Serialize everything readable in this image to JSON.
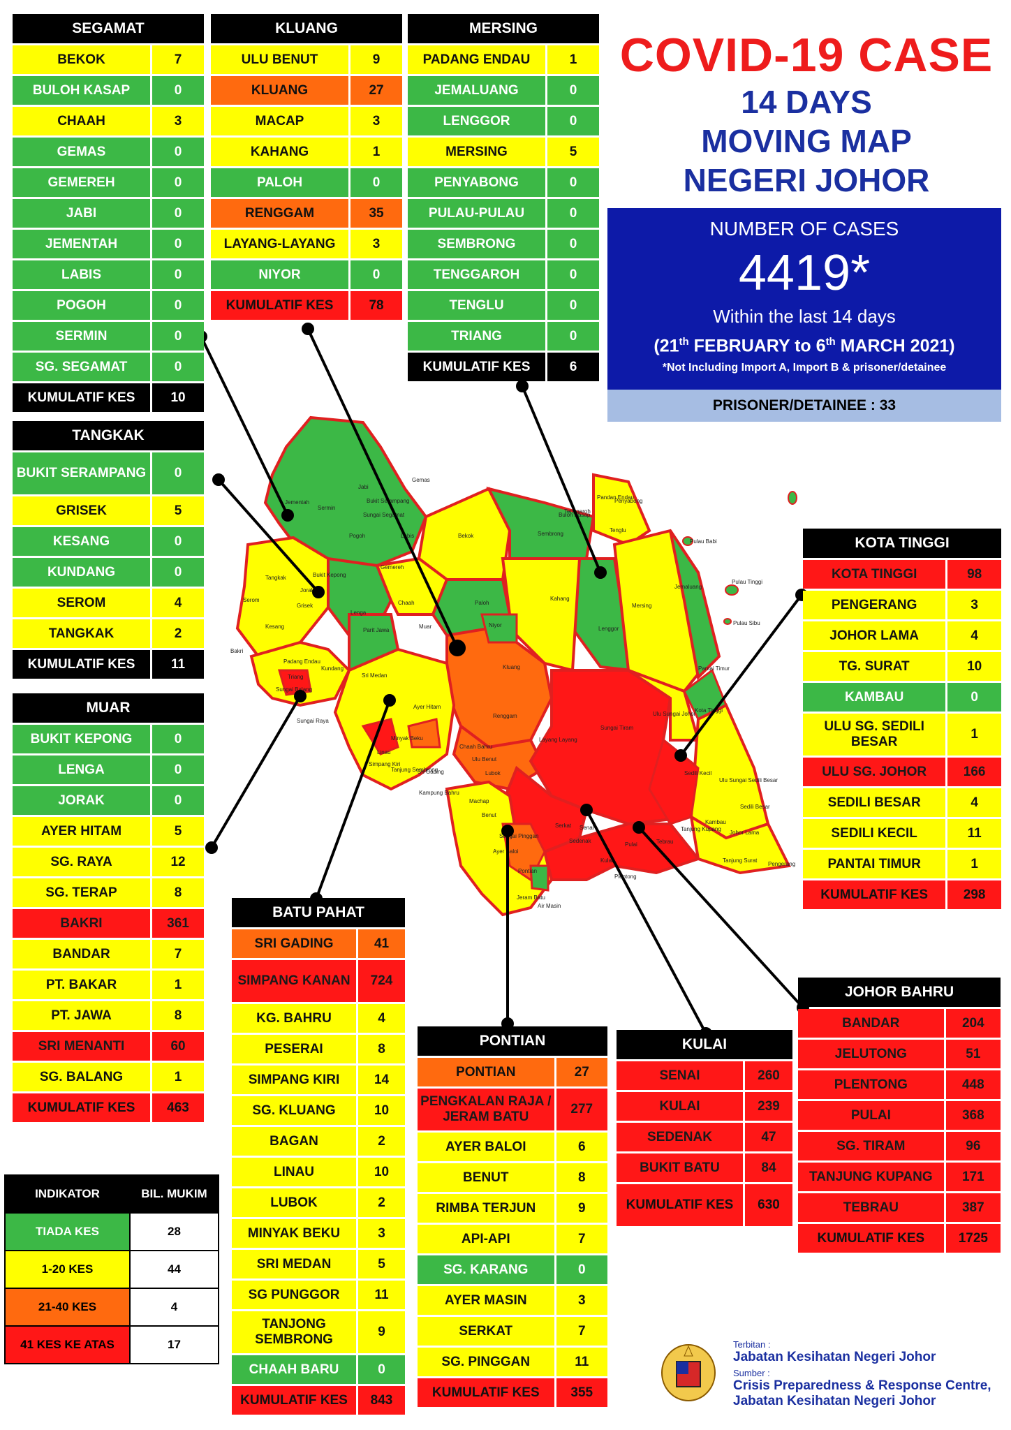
{
  "title": {
    "main": "COVID-19 CASE",
    "line1": "14 DAYS",
    "line2": "MOVING MAP",
    "line3": "NEGERI JOHOR"
  },
  "cases": {
    "heading": "NUMBER OF CASES",
    "total": "4419*",
    "within": "Within the last 14 days",
    "period_open": "(21",
    "period_sup1": "th",
    "period_mid": " FEBRUARY to 6",
    "period_sup2": "th",
    "period_close": " MARCH 2021)",
    "note": "*Not Including Import A, Import B & prisoner/detainee"
  },
  "prisoner": "PRISONER/DETAINEE : 33",
  "colors": {
    "green": "#3cb846",
    "yellow": "#ffff00",
    "orange": "#ff6a0f",
    "red": "#ff1717"
  },
  "districts": {
    "segamat": {
      "name": "SEGAMAT",
      "rows": [
        {
          "name": "BEKOK",
          "value": "7",
          "level": "yellow"
        },
        {
          "name": "BULOH KASAP",
          "value": "0",
          "level": "green"
        },
        {
          "name": "CHAAH",
          "value": "3",
          "level": "yellow"
        },
        {
          "name": "GEMAS",
          "value": "0",
          "level": "green"
        },
        {
          "name": "GEMEREH",
          "value": "0",
          "level": "green"
        },
        {
          "name": "JABI",
          "value": "0",
          "level": "green"
        },
        {
          "name": "JEMENTAH",
          "value": "0",
          "level": "green"
        },
        {
          "name": "LABIS",
          "value": "0",
          "level": "green"
        },
        {
          "name": "POGOH",
          "value": "0",
          "level": "green"
        },
        {
          "name": "SERMIN",
          "value": "0",
          "level": "green"
        },
        {
          "name": "SG. SEGAMAT",
          "value": "0",
          "level": "green"
        },
        {
          "name": "KUMULATIF KES",
          "value": "10",
          "level": "total"
        }
      ]
    },
    "kluang": {
      "name": "KLUANG",
      "rows": [
        {
          "name": "ULU BENUT",
          "value": "9",
          "level": "yellow"
        },
        {
          "name": "KLUANG",
          "value": "27",
          "level": "orange"
        },
        {
          "name": "MACAP",
          "value": "3",
          "level": "yellow"
        },
        {
          "name": "KAHANG",
          "value": "1",
          "level": "yellow"
        },
        {
          "name": "PALOH",
          "value": "0",
          "level": "green"
        },
        {
          "name": "RENGGAM",
          "value": "35",
          "level": "orange"
        },
        {
          "name": "LAYANG-LAYANG",
          "value": "3",
          "level": "yellow"
        },
        {
          "name": "NIYOR",
          "value": "0",
          "level": "green"
        },
        {
          "name": "KUMULATIF KES",
          "value": "78",
          "level": "totalred"
        }
      ]
    },
    "mersing": {
      "name": "MERSING",
      "rows": [
        {
          "name": "PADANG ENDAU",
          "value": "1",
          "level": "yellow"
        },
        {
          "name": "JEMALUANG",
          "value": "0",
          "level": "green"
        },
        {
          "name": "LENGGOR",
          "value": "0",
          "level": "green"
        },
        {
          "name": "MERSING",
          "value": "5",
          "level": "yellow"
        },
        {
          "name": "PENYABONG",
          "value": "0",
          "level": "green"
        },
        {
          "name": "PULAU-PULAU",
          "value": "0",
          "level": "green"
        },
        {
          "name": "SEMBRONG",
          "value": "0",
          "level": "green"
        },
        {
          "name": "TENGGAROH",
          "value": "0",
          "level": "green"
        },
        {
          "name": "TENGLU",
          "value": "0",
          "level": "green"
        },
        {
          "name": "TRIANG",
          "value": "0",
          "level": "green"
        },
        {
          "name": "KUMULATIF KES",
          "value": "6",
          "level": "total"
        }
      ]
    },
    "tangkak": {
      "name": "TANGKAK",
      "rows": [
        {
          "name": "BUKIT SERAMPANG",
          "value": "0",
          "level": "green",
          "tall": true
        },
        {
          "name": "GRISEK",
          "value": "5",
          "level": "yellow"
        },
        {
          "name": "KESANG",
          "value": "0",
          "level": "green"
        },
        {
          "name": "KUNDANG",
          "value": "0",
          "level": "green"
        },
        {
          "name": "SEROM",
          "value": "4",
          "level": "yellow"
        },
        {
          "name": "TANGKAK",
          "value": "2",
          "level": "yellow"
        },
        {
          "name": "KUMULATIF KES",
          "value": "11",
          "level": "total"
        }
      ]
    },
    "muar": {
      "name": "MUAR",
      "rows": [
        {
          "name": "BUKIT KEPONG",
          "value": "0",
          "level": "green"
        },
        {
          "name": "LENGA",
          "value": "0",
          "level": "green"
        },
        {
          "name": "JORAK",
          "value": "0",
          "level": "green"
        },
        {
          "name": "AYER HITAM",
          "value": "5",
          "level": "yellow"
        },
        {
          "name": "SG. RAYA",
          "value": "12",
          "level": "yellow"
        },
        {
          "name": "SG. TERAP",
          "value": "8",
          "level": "yellow"
        },
        {
          "name": "BAKRI",
          "value": "361",
          "level": "red"
        },
        {
          "name": "BANDAR",
          "value": "7",
          "level": "yellow"
        },
        {
          "name": "PT. BAKAR",
          "value": "1",
          "level": "yellow"
        },
        {
          "name": "PT. JAWA",
          "value": "8",
          "level": "yellow"
        },
        {
          "name": "SRI MENANTI",
          "value": "60",
          "level": "red"
        },
        {
          "name": "SG. BALANG",
          "value": "1",
          "level": "yellow"
        },
        {
          "name": "KUMULATIF KES",
          "value": "463",
          "level": "totalred"
        }
      ]
    },
    "batu_pahat": {
      "name": "BATU PAHAT",
      "rows": [
        {
          "name": "SRI GADING",
          "value": "41",
          "level": "orange"
        },
        {
          "name": "SIMPANG KANAN",
          "value": "724",
          "level": "red",
          "tall": true
        },
        {
          "name": "KG. BAHRU",
          "value": "4",
          "level": "yellow"
        },
        {
          "name": "PESERAI",
          "value": "8",
          "level": "yellow"
        },
        {
          "name": "SIMPANG KIRI",
          "value": "14",
          "level": "yellow"
        },
        {
          "name": "SG. KLUANG",
          "value": "10",
          "level": "yellow"
        },
        {
          "name": "BAGAN",
          "value": "2",
          "level": "yellow"
        },
        {
          "name": "LINAU",
          "value": "10",
          "level": "yellow"
        },
        {
          "name": "LUBOK",
          "value": "2",
          "level": "yellow"
        },
        {
          "name": "MINYAK BEKU",
          "value": "3",
          "level": "yellow"
        },
        {
          "name": "SRI MEDAN",
          "value": "5",
          "level": "yellow"
        },
        {
          "name": "SG PUNGGOR",
          "value": "11",
          "level": "yellow"
        },
        {
          "name": "TANJONG SEMBRONG",
          "value": "9",
          "level": "yellow",
          "tall": true
        },
        {
          "name": "CHAAH BARU",
          "value": "0",
          "level": "green"
        },
        {
          "name": "KUMULATIF KES",
          "value": "843",
          "level": "totalred"
        }
      ]
    },
    "pontian": {
      "name": "PONTIAN",
      "rows": [
        {
          "name": "PONTIAN",
          "value": "27",
          "level": "orange"
        },
        {
          "name": "PENGKALAN RAJA / JERAM BATU",
          "value": "277",
          "level": "red",
          "tall": true
        },
        {
          "name": "AYER BALOI",
          "value": "6",
          "level": "yellow"
        },
        {
          "name": "BENUT",
          "value": "8",
          "level": "yellow"
        },
        {
          "name": "RIMBA TERJUN",
          "value": "9",
          "level": "yellow"
        },
        {
          "name": "API-API",
          "value": "7",
          "level": "yellow"
        },
        {
          "name": "SG. KARANG",
          "value": "0",
          "level": "green"
        },
        {
          "name": "AYER MASIN",
          "value": "3",
          "level": "yellow"
        },
        {
          "name": "SERKAT",
          "value": "7",
          "level": "yellow"
        },
        {
          "name": "SG. PINGGAN",
          "value": "11",
          "level": "yellow"
        },
        {
          "name": "KUMULATIF KES",
          "value": "355",
          "level": "totalred"
        }
      ]
    },
    "kulai": {
      "name": "KULAI",
      "rows": [
        {
          "name": "SENAI",
          "value": "260",
          "level": "red"
        },
        {
          "name": "KULAI",
          "value": "239",
          "level": "red"
        },
        {
          "name": "SEDENAK",
          "value": "47",
          "level": "red"
        },
        {
          "name": "BUKIT BATU",
          "value": "84",
          "level": "red"
        },
        {
          "name": "KUMULATIF KES",
          "value": "630",
          "level": "totalred",
          "tall": true
        }
      ]
    },
    "kota_tinggi": {
      "name": "KOTA TINGGI",
      "rows": [
        {
          "name": "KOTA TINGGI",
          "value": "98",
          "level": "red"
        },
        {
          "name": "PENGERANG",
          "value": "3",
          "level": "yellow"
        },
        {
          "name": "JOHOR LAMA",
          "value": "4",
          "level": "yellow"
        },
        {
          "name": "TG. SURAT",
          "value": "10",
          "level": "yellow"
        },
        {
          "name": "KAMBAU",
          "value": "0",
          "level": "green"
        },
        {
          "name": "ULU SG. SEDILI BESAR",
          "value": "1",
          "level": "yellow",
          "tall": true
        },
        {
          "name": "ULU  SG. JOHOR",
          "value": "166",
          "level": "red"
        },
        {
          "name": "SEDILI BESAR",
          "value": "4",
          "level": "yellow"
        },
        {
          "name": "SEDILI KECIL",
          "value": "11",
          "level": "yellow"
        },
        {
          "name": "PANTAI TIMUR",
          "value": "1",
          "level": "yellow"
        },
        {
          "name": "KUMULATIF KES",
          "value": "298",
          "level": "totalred"
        }
      ]
    },
    "johor_bahru": {
      "name": "JOHOR BAHRU",
      "rows": [
        {
          "name": "BANDAR",
          "value": "204",
          "level": "red"
        },
        {
          "name": "JELUTONG",
          "value": "51",
          "level": "red"
        },
        {
          "name": "PLENTONG",
          "value": "448",
          "level": "red"
        },
        {
          "name": "PULAI",
          "value": "368",
          "level": "red"
        },
        {
          "name": "SG. TIRAM",
          "value": "96",
          "level": "red"
        },
        {
          "name": "TANJUNG KUPANG",
          "value": "171",
          "level": "red"
        },
        {
          "name": "TEBRAU",
          "value": "387",
          "level": "red"
        },
        {
          "name": "KUMULATIF KES",
          "value": "1725",
          "level": "totalred"
        }
      ]
    }
  },
  "legend": {
    "col1": "INDIKATOR",
    "col2": "BIL. MUKIM",
    "rows": [
      {
        "label": "TIADA KES",
        "count": "28",
        "level": "green"
      },
      {
        "label": "1-20 KES",
        "count": "44",
        "level": "yellow"
      },
      {
        "label": "21-40 KES",
        "count": "4",
        "level": "orange"
      },
      {
        "label": "41 KES KE ATAS",
        "count": "17",
        "level": "red"
      }
    ]
  },
  "footer": {
    "published_label": "Terbitan :",
    "publisher": "Jabatan Kesihatan Negeri Johor",
    "source_label": "Sumber :",
    "source1": "Crisis Preparedness & Response Centre,",
    "source2": "Jabatan Kesihatan Negeri Johor"
  },
  "map_labels": [
    "Gemas",
    "Jementah",
    "Bukit Kepong",
    "Sungai Segamat",
    "Jabi",
    "Pogoh",
    "Labis",
    "Bekok",
    "Tangkak",
    "Grisek",
    "Lenga",
    "Chaah",
    "Paloh",
    "Niyor",
    "Kahang",
    "Mersing",
    "Lenggor",
    "Sembrong",
    "Tenglu",
    "Jemaluang",
    "Penyabong",
    "Pulau Babi",
    "Pulau Tinggi",
    "Pulau Sibu",
    "Kluang",
    "Renggam",
    "Ulu Benut",
    "Layang Layang",
    "Sri Medan",
    "Ayer Hitam",
    "Chaah Bahru",
    "Tanjung Sembrong",
    "Sri Gading",
    "Kampung Bahru",
    "Simpang Kiri",
    "Minyak Beku",
    "Linau",
    "Lubok",
    "Machap",
    "Benut",
    "Sungai Pinggan",
    "Ayer Baloi",
    "Pontian",
    "Jeram Batu",
    "Air Masin",
    "Serkat",
    "Sedenak",
    "Senai",
    "Kulai",
    "Pulai",
    "Tebrau",
    "Plentong",
    "Tanjung Kupang",
    "Sungai Tiram",
    "Ulu Sungai Johor",
    "Ulu Sungai Sedili Besar",
    "Sedili Besar",
    "Sedili Kecil",
    "Kota Tinggi",
    "Kambau",
    "Johor Lama",
    "Tanjung Surat",
    "Pengerang",
    "Pantai Timur",
    "Tenggaroh",
    "Pandan Endau",
    "Triang",
    "Bakri",
    "Kesang",
    "Serom",
    "Kundang",
    "Sungai Raya",
    "Sungai Balang",
    "Parit Jawa",
    "Jorak",
    "Bukit Serampang",
    "Sermin",
    "Gemereh",
    "Buloh Kasap",
    "Padang Endau",
    "Muar"
  ]
}
